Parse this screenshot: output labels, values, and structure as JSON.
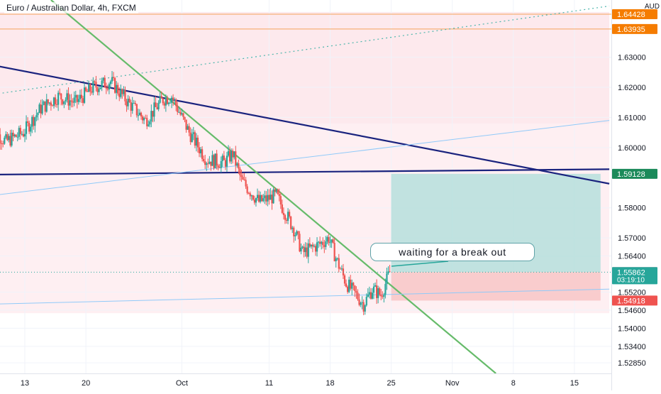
{
  "title": "Euro / Australian Dollar, 4h, FXCM",
  "currency": "AUD",
  "annotation": "waiting for a break out",
  "colors": {
    "candle_up": "#26a69a",
    "candle_down": "#ef5350",
    "zone_fill": "#fde8ec",
    "resistance_line": "#1a237e",
    "trendline": "#66bb6a",
    "channel_line": "#90caf9",
    "target_zone": "#b2dfdb",
    "stop_zone": "#f8c6c7"
  },
  "chart_data": {
    "type": "candlestick",
    "symbol": "EUR/AUD",
    "interval": "4h",
    "source": "FXCM",
    "ylim": [
      1.525,
      1.649
    ],
    "y_ticks": [
      "1.63000",
      "1.62000",
      "1.61000",
      "1.60000",
      "1.58000",
      "1.57000",
      "1.56400",
      "1.55200",
      "1.54600",
      "1.54000",
      "1.53400",
      "1.52850"
    ],
    "x_ticks": [
      {
        "label": "13",
        "date": "2021-09-13"
      },
      {
        "label": "20",
        "date": "2021-09-20"
      },
      {
        "label": "Oct",
        "date": "2021-10-01"
      },
      {
        "label": "11",
        "date": "2021-10-11"
      },
      {
        "label": "18",
        "date": "2021-10-18"
      },
      {
        "label": "25",
        "date": "2021-10-25"
      },
      {
        "label": "Nov",
        "date": "2021-11-01"
      },
      {
        "label": "8",
        "date": "2021-11-08"
      },
      {
        "label": "15",
        "date": "2021-11-15"
      }
    ],
    "price_markers": [
      {
        "label": "1.64428",
        "value": 1.64428,
        "color": "#f57c00"
      },
      {
        "label": "1.63935",
        "value": 1.63935,
        "color": "#f57c00"
      },
      {
        "label": "1.59128",
        "value": 1.59128,
        "color": "#1b8a5a"
      },
      {
        "label": "1.55864",
        "value": 1.55864,
        "color": "#787b86"
      },
      {
        "label": "1.55862",
        "value": 1.55862,
        "color": "#26a69a",
        "sub": "03:19:10"
      },
      {
        "label": "1.54918",
        "value": 1.54918,
        "color": "#ef5350"
      }
    ],
    "close_path": [
      {
        "date": "2021-09-09",
        "close": 1.607
      },
      {
        "date": "2021-09-11",
        "close": 1.602
      },
      {
        "date": "2021-09-13",
        "close": 1.605
      },
      {
        "date": "2021-09-15",
        "close": 1.613
      },
      {
        "date": "2021-09-17",
        "close": 1.617
      },
      {
        "date": "2021-09-19",
        "close": 1.615
      },
      {
        "date": "2021-09-21",
        "close": 1.62
      },
      {
        "date": "2021-09-23",
        "close": 1.622
      },
      {
        "date": "2021-09-25",
        "close": 1.615
      },
      {
        "date": "2021-09-27",
        "close": 1.609
      },
      {
        "date": "2021-09-29",
        "close": 1.616
      },
      {
        "date": "2021-09-30",
        "close": 1.617
      },
      {
        "date": "2021-10-02",
        "close": 1.605
      },
      {
        "date": "2021-10-04",
        "close": 1.596
      },
      {
        "date": "2021-10-06",
        "close": 1.595
      },
      {
        "date": "2021-10-07",
        "close": 1.598
      },
      {
        "date": "2021-10-08",
        "close": 1.589
      },
      {
        "date": "2021-10-10",
        "close": 1.582
      },
      {
        "date": "2021-10-12",
        "close": 1.584
      },
      {
        "date": "2021-10-14",
        "close": 1.573
      },
      {
        "date": "2021-10-15",
        "close": 1.565
      },
      {
        "date": "2021-10-17",
        "close": 1.568
      },
      {
        "date": "2021-10-18",
        "close": 1.57
      },
      {
        "date": "2021-10-19",
        "close": 1.562
      },
      {
        "date": "2021-10-20",
        "close": 1.555
      },
      {
        "date": "2021-10-22",
        "close": 1.548
      },
      {
        "date": "2021-10-23",
        "close": 1.553
      },
      {
        "date": "2021-10-24",
        "close": 1.551
      },
      {
        "date": "2021-10-25",
        "close": 1.5586
      }
    ],
    "lines": [
      {
        "name": "descending-resistance",
        "from": {
          "date": "2021-09-01",
          "price": 1.632
        },
        "to": {
          "date": "2021-11-19",
          "price": 1.588
        }
      },
      {
        "name": "horizontal-support",
        "from": {
          "date": "2021-09-09",
          "price": 1.591
        },
        "to": {
          "date": "2021-11-19",
          "price": 1.5928
        }
      },
      {
        "name": "steep-downtrend",
        "from": {
          "date": "2021-09-16",
          "price": 1.649
        },
        "to": {
          "date": "2021-11-06",
          "price": 1.525
        }
      },
      {
        "name": "channel-upper",
        "from": {
          "date": "2021-09-09",
          "price": 1.584
        },
        "to": {
          "date": "2021-11-19",
          "price": 1.609
        }
      },
      {
        "name": "channel-lower",
        "from": {
          "date": "2021-09-09",
          "price": 1.548
        },
        "to": {
          "date": "2021-11-19",
          "price": 1.553
        }
      },
      {
        "name": "dotted-upper",
        "from": {
          "date": "2021-09-09",
          "price": 1.6175
        },
        "to": {
          "date": "2021-11-19",
          "price": 1.647
        }
      }
    ],
    "zones": [
      {
        "name": "upper-range",
        "from_date": "2021-09-09",
        "to_date": "2021-11-19",
        "top": 1.645,
        "bottom": 1.608
      },
      {
        "name": "lower-range",
        "from_date": "2021-09-09",
        "to_date": "2021-11-19",
        "top": 1.608,
        "bottom": 1.545
      }
    ],
    "position": {
      "type": "long",
      "entry": 1.55864,
      "target": 1.59128,
      "stop": 1.54918,
      "from_date": "2021-10-25",
      "to_date": "2021-11-18"
    },
    "current_price": 1.55862
  }
}
